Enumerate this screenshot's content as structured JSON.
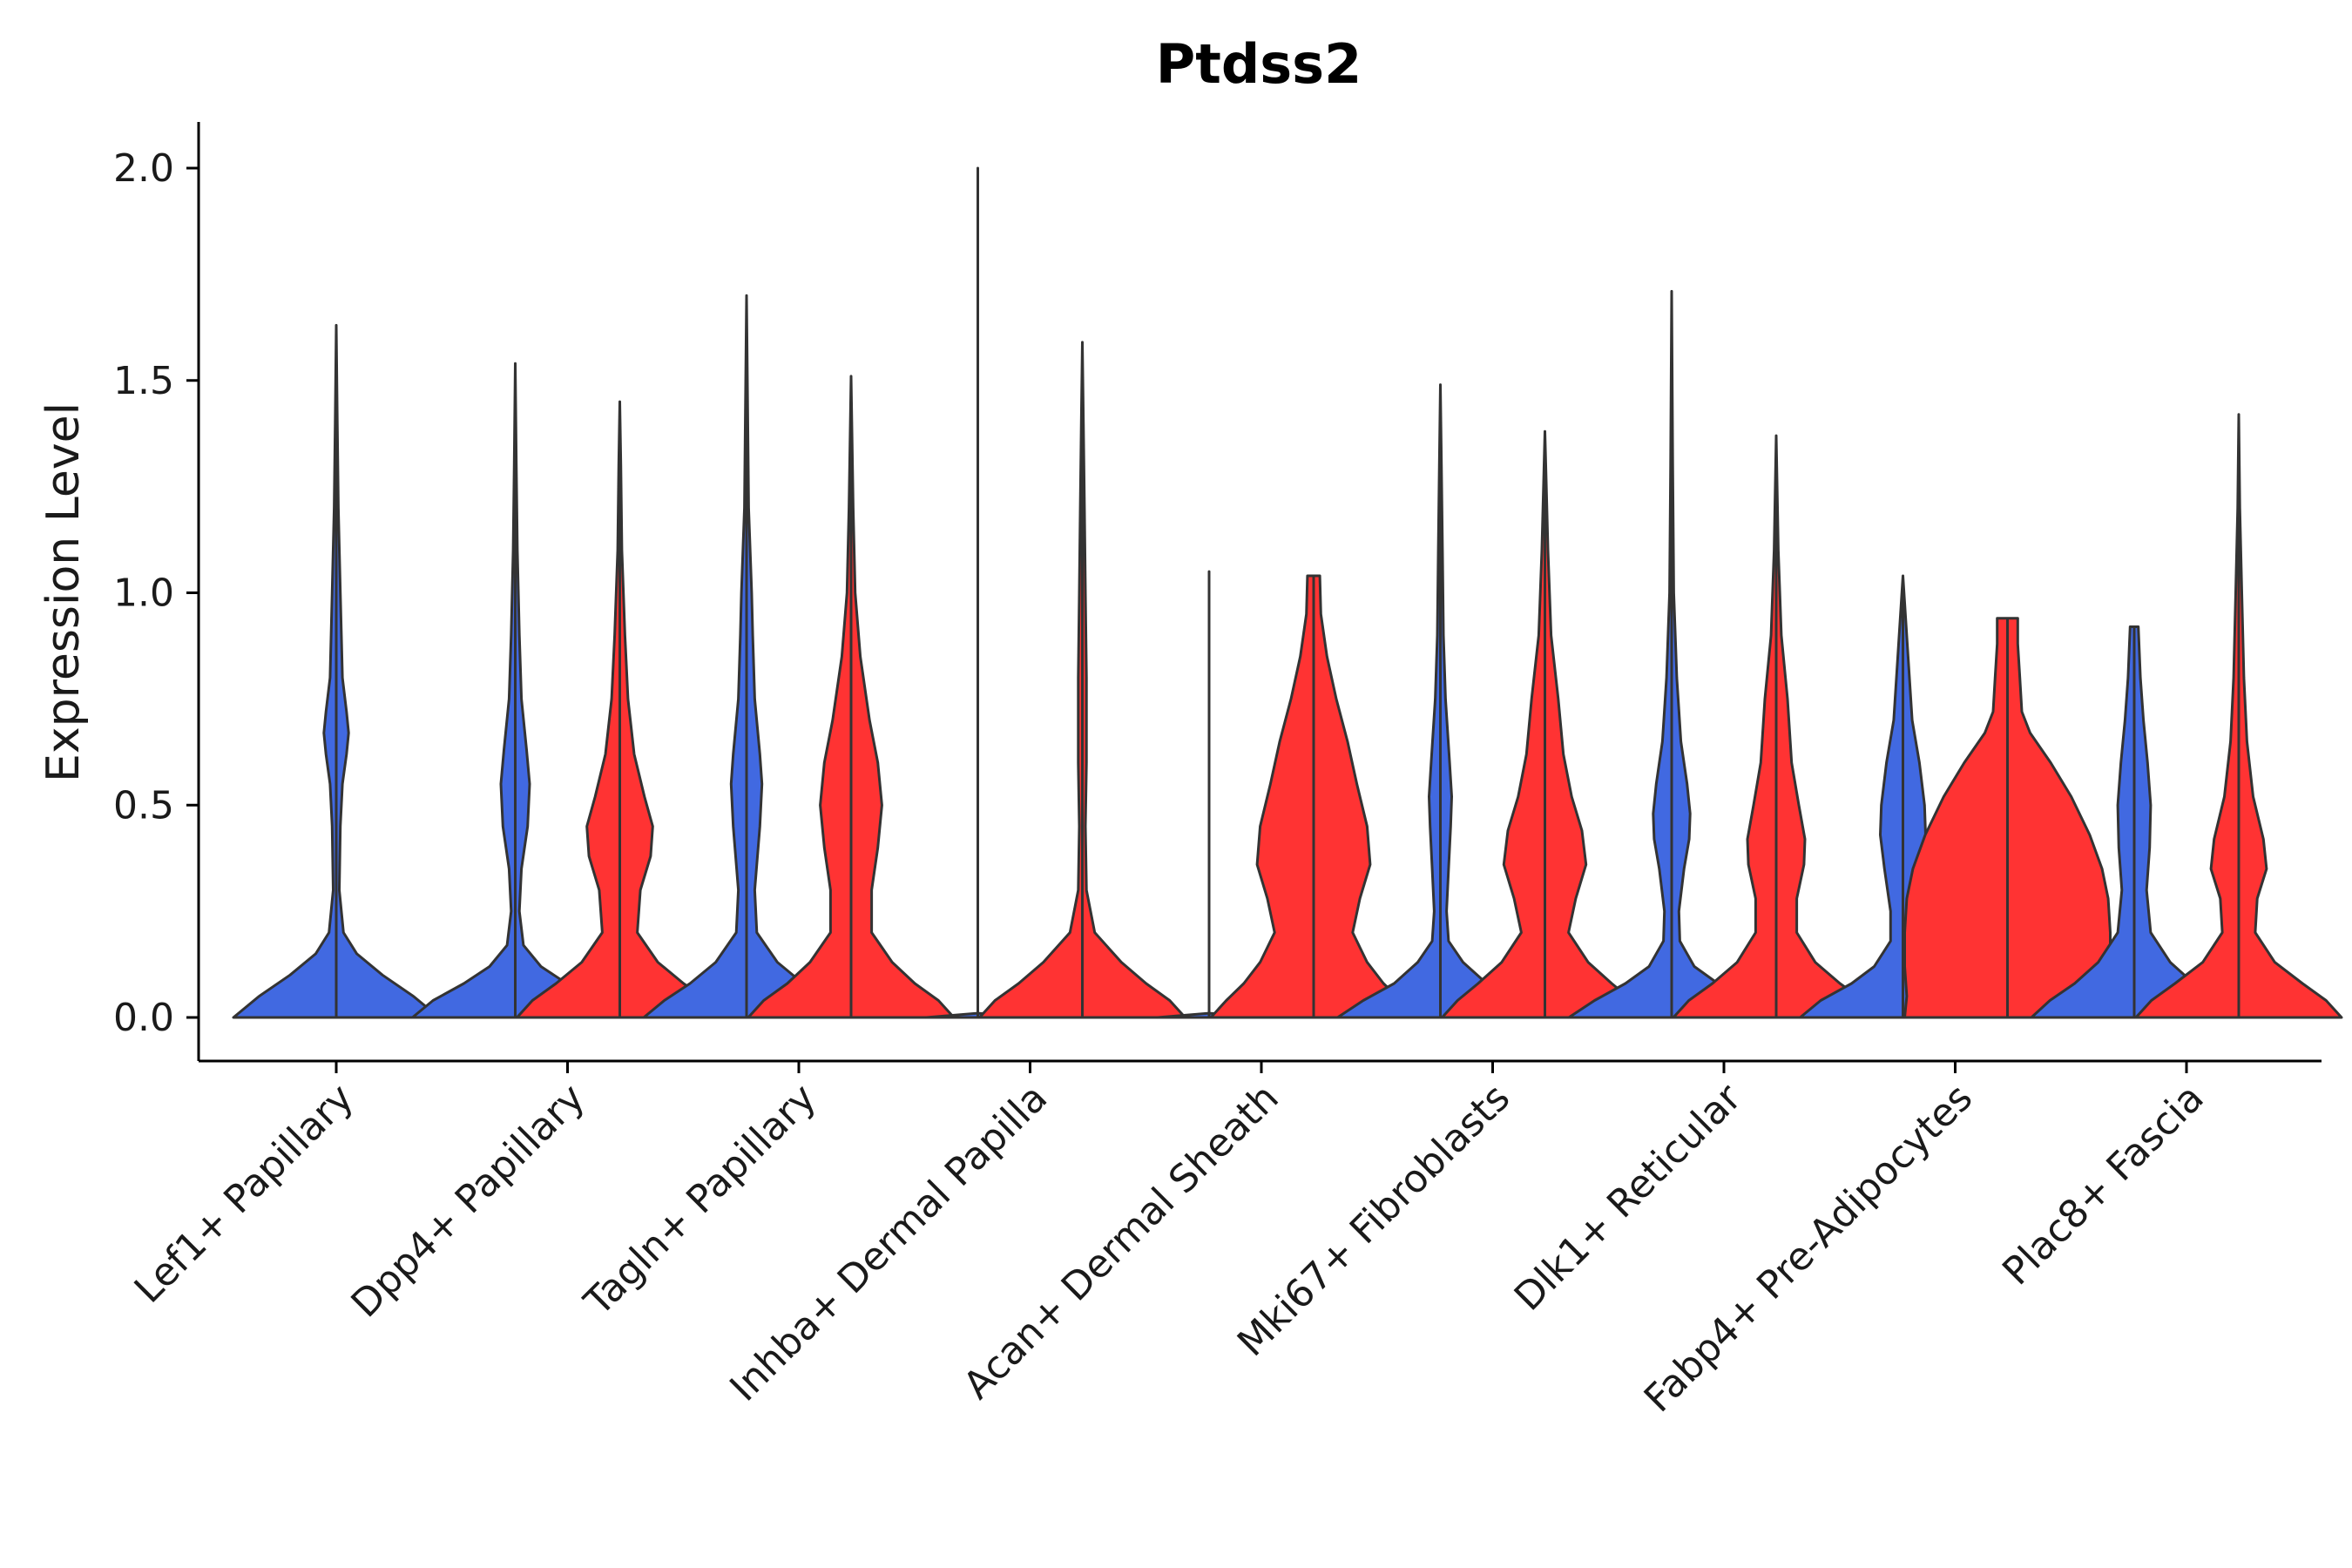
{
  "chart_data": {
    "type": "violin",
    "title": "Ptdss2",
    "xlabel": "",
    "ylabel": "Expression Level",
    "ylim": [
      -0.1,
      2.1
    ],
    "yticks": [
      0.0,
      0.5,
      1.0,
      1.5,
      2.0
    ],
    "ytick_labels": [
      "0.0",
      "0.5",
      "1.0",
      "1.5",
      "2.0"
    ],
    "categories": [
      "Lef1+ Papillary",
      "Dpp4+ Papillary",
      "Tagln+ Papillary",
      "Inhba+ Dermal Papilla",
      "Acan+ Dermal Sheath",
      "Mki67+ Fibroblasts",
      "Dlk1+ Reticular",
      "Fabp4+ Pre-Adipocytes",
      "Plac8+ Fascia"
    ],
    "colors": {
      "blue_group": "#4169E1",
      "red_group": "#FF3333",
      "outline": "#333333"
    },
    "series": [
      {
        "name": "blue",
        "color": "#4169E1",
        "values": [
          {
            "category": "Lef1+ Papillary",
            "max": 1.63,
            "profile": [
              [
                0,
                1.0
              ],
              [
                0.05,
                0.75
              ],
              [
                0.1,
                0.45
              ],
              [
                0.15,
                0.2
              ],
              [
                0.2,
                0.07
              ],
              [
                0.3,
                0.03
              ],
              [
                0.45,
                0.04
              ],
              [
                0.55,
                0.06
              ],
              [
                0.62,
                0.1
              ],
              [
                0.67,
                0.12
              ],
              [
                0.72,
                0.1
              ],
              [
                0.8,
                0.06
              ],
              [
                0.9,
                0.05
              ],
              [
                1.0,
                0.04
              ],
              [
                1.2,
                0.02
              ],
              [
                1.4,
                0.01
              ],
              [
                1.63,
                0.0
              ]
            ]
          },
          {
            "category": "Dpp4+ Papillary",
            "max": 1.54,
            "profile": [
              [
                0,
                1.0
              ],
              [
                0.04,
                0.8
              ],
              [
                0.08,
                0.5
              ],
              [
                0.12,
                0.25
              ],
              [
                0.17,
                0.08
              ],
              [
                0.25,
                0.04
              ],
              [
                0.35,
                0.06
              ],
              [
                0.45,
                0.12
              ],
              [
                0.55,
                0.14
              ],
              [
                0.63,
                0.11
              ],
              [
                0.75,
                0.06
              ],
              [
                0.9,
                0.04
              ],
              [
                1.1,
                0.02
              ],
              [
                1.3,
                0.01
              ],
              [
                1.54,
                0.0
              ]
            ]
          },
          {
            "category": "Tagln+ Papillary",
            "max": 1.7,
            "profile": [
              [
                0,
                1.0
              ],
              [
                0.04,
                0.8
              ],
              [
                0.08,
                0.55
              ],
              [
                0.13,
                0.3
              ],
              [
                0.2,
                0.1
              ],
              [
                0.3,
                0.08
              ],
              [
                0.45,
                0.13
              ],
              [
                0.55,
                0.15
              ],
              [
                0.62,
                0.13
              ],
              [
                0.75,
                0.08
              ],
              [
                0.9,
                0.06
              ],
              [
                1.0,
                0.05
              ],
              [
                1.2,
                0.02
              ],
              [
                1.45,
                0.01
              ],
              [
                1.7,
                0.0
              ]
            ]
          },
          {
            "category": "Inhba+ Dermal Papilla",
            "max": 2.0,
            "profile": [
              [
                0,
                0.5
              ],
              [
                0.01,
                0.0
              ],
              [
                2.0,
                0.0
              ]
            ]
          },
          {
            "category": "Acan+ Dermal Sheath",
            "max": 1.05,
            "profile": [
              [
                0,
                0.5
              ],
              [
                0.01,
                0.0
              ],
              [
                1.05,
                0.0
              ]
            ]
          },
          {
            "category": "Mki67+ Fibroblasts",
            "max": 1.49,
            "profile": [
              [
                0,
                1.0
              ],
              [
                0.04,
                0.75
              ],
              [
                0.08,
                0.45
              ],
              [
                0.13,
                0.22
              ],
              [
                0.18,
                0.08
              ],
              [
                0.25,
                0.06
              ],
              [
                0.35,
                0.08
              ],
              [
                0.45,
                0.1
              ],
              [
                0.52,
                0.11
              ],
              [
                0.6,
                0.09
              ],
              [
                0.75,
                0.05
              ],
              [
                0.9,
                0.03
              ],
              [
                1.1,
                0.02
              ],
              [
                1.3,
                0.01
              ],
              [
                1.49,
                0.0
              ]
            ]
          },
          {
            "category": "Dlk1+ Reticular",
            "max": 1.71,
            "profile": [
              [
                0,
                1.0
              ],
              [
                0.04,
                0.75
              ],
              [
                0.08,
                0.45
              ],
              [
                0.12,
                0.22
              ],
              [
                0.18,
                0.08
              ],
              [
                0.25,
                0.07
              ],
              [
                0.35,
                0.12
              ],
              [
                0.42,
                0.17
              ],
              [
                0.48,
                0.18
              ],
              [
                0.55,
                0.15
              ],
              [
                0.65,
                0.09
              ],
              [
                0.8,
                0.05
              ],
              [
                1.0,
                0.02
              ],
              [
                1.3,
                0.01
              ],
              [
                1.71,
                0.0
              ]
            ]
          },
          {
            "category": "Fabp4+ Pre-Adipocytes",
            "max": 1.04,
            "profile": [
              [
                0,
                1.0
              ],
              [
                0.04,
                0.8
              ],
              [
                0.08,
                0.5
              ],
              [
                0.12,
                0.28
              ],
              [
                0.18,
                0.12
              ],
              [
                0.25,
                0.12
              ],
              [
                0.35,
                0.18
              ],
              [
                0.43,
                0.22
              ],
              [
                0.5,
                0.21
              ],
              [
                0.6,
                0.16
              ],
              [
                0.7,
                0.09
              ],
              [
                0.85,
                0.05
              ],
              [
                1.04,
                0.0
              ]
            ]
          },
          {
            "category": "Plac8+ Fascia",
            "max": 0.92,
            "profile": [
              [
                0,
                1.0
              ],
              [
                0.04,
                0.82
              ],
              [
                0.08,
                0.58
              ],
              [
                0.13,
                0.35
              ],
              [
                0.2,
                0.16
              ],
              [
                0.3,
                0.12
              ],
              [
                0.4,
                0.15
              ],
              [
                0.5,
                0.16
              ],
              [
                0.6,
                0.13
              ],
              [
                0.7,
                0.09
              ],
              [
                0.8,
                0.06
              ],
              [
                0.92,
                0.04
              ]
            ]
          }
        ]
      },
      {
        "name": "red",
        "color": "#FF3333",
        "values": [
          {
            "category": "Lef1+ Papillary",
            "max": 0.0,
            "profile": []
          },
          {
            "category": "Dpp4+ Papillary",
            "max": 1.45,
            "profile": [
              [
                0,
                1.0
              ],
              [
                0.04,
                0.85
              ],
              [
                0.08,
                0.62
              ],
              [
                0.13,
                0.37
              ],
              [
                0.2,
                0.17
              ],
              [
                0.3,
                0.2
              ],
              [
                0.38,
                0.3
              ],
              [
                0.45,
                0.32
              ],
              [
                0.52,
                0.24
              ],
              [
                0.62,
                0.14
              ],
              [
                0.75,
                0.08
              ],
              [
                0.9,
                0.05
              ],
              [
                1.1,
                0.02
              ],
              [
                1.3,
                0.01
              ],
              [
                1.45,
                0.0
              ]
            ]
          },
          {
            "category": "Tagln+ Papillary",
            "max": 1.51,
            "profile": [
              [
                0,
                1.0
              ],
              [
                0.04,
                0.85
              ],
              [
                0.08,
                0.62
              ],
              [
                0.13,
                0.4
              ],
              [
                0.2,
                0.2
              ],
              [
                0.3,
                0.2
              ],
              [
                0.4,
                0.26
              ],
              [
                0.5,
                0.3
              ],
              [
                0.6,
                0.26
              ],
              [
                0.7,
                0.18
              ],
              [
                0.85,
                0.09
              ],
              [
                1.0,
                0.04
              ],
              [
                1.2,
                0.02
              ],
              [
                1.51,
                0.0
              ]
            ]
          },
          {
            "category": "Inhba+ Dermal Papilla",
            "max": 1.59,
            "profile": [
              [
                0,
                1.0
              ],
              [
                0.04,
                0.85
              ],
              [
                0.08,
                0.62
              ],
              [
                0.13,
                0.38
              ],
              [
                0.2,
                0.12
              ],
              [
                0.3,
                0.04
              ],
              [
                0.45,
                0.03
              ],
              [
                0.6,
                0.04
              ],
              [
                0.8,
                0.04
              ],
              [
                1.0,
                0.03
              ],
              [
                1.2,
                0.02
              ],
              [
                1.4,
                0.01
              ],
              [
                1.59,
                0.0
              ]
            ]
          },
          {
            "category": "Acan+ Dermal Sheath",
            "max": 1.04,
            "profile": [
              [
                0,
                1.0
              ],
              [
                0.04,
                0.85
              ],
              [
                0.08,
                0.68
              ],
              [
                0.13,
                0.52
              ],
              [
                0.2,
                0.38
              ],
              [
                0.28,
                0.45
              ],
              [
                0.36,
                0.55
              ],
              [
                0.45,
                0.52
              ],
              [
                0.55,
                0.42
              ],
              [
                0.65,
                0.33
              ],
              [
                0.75,
                0.22
              ],
              [
                0.85,
                0.13
              ],
              [
                0.95,
                0.07
              ],
              [
                1.04,
                0.06
              ]
            ]
          },
          {
            "category": "Mki67+ Fibroblasts",
            "max": 1.38,
            "profile": [
              [
                0,
                1.0
              ],
              [
                0.04,
                0.85
              ],
              [
                0.08,
                0.65
              ],
              [
                0.13,
                0.42
              ],
              [
                0.2,
                0.23
              ],
              [
                0.28,
                0.3
              ],
              [
                0.36,
                0.4
              ],
              [
                0.44,
                0.36
              ],
              [
                0.52,
                0.26
              ],
              [
                0.62,
                0.18
              ],
              [
                0.75,
                0.13
              ],
              [
                0.9,
                0.06
              ],
              [
                1.1,
                0.03
              ],
              [
                1.38,
                0.0
              ]
            ]
          },
          {
            "category": "Dlk1+ Reticular",
            "max": 1.37,
            "profile": [
              [
                0,
                1.0
              ],
              [
                0.04,
                0.85
              ],
              [
                0.08,
                0.62
              ],
              [
                0.13,
                0.38
              ],
              [
                0.2,
                0.2
              ],
              [
                0.28,
                0.2
              ],
              [
                0.36,
                0.27
              ],
              [
                0.42,
                0.28
              ],
              [
                0.5,
                0.22
              ],
              [
                0.6,
                0.15
              ],
              [
                0.75,
                0.11
              ],
              [
                0.9,
                0.05
              ],
              [
                1.1,
                0.02
              ],
              [
                1.37,
                0.0
              ]
            ]
          },
          {
            "category": "Fabp4+ Pre-Adipocytes",
            "max": 0.94,
            "profile": [
              [
                0,
                1.0
              ],
              [
                0.05,
                0.98
              ],
              [
                0.12,
                1.0
              ],
              [
                0.2,
                1.0
              ],
              [
                0.28,
                0.98
              ],
              [
                0.35,
                0.92
              ],
              [
                0.43,
                0.8
              ],
              [
                0.52,
                0.62
              ],
              [
                0.6,
                0.42
              ],
              [
                0.67,
                0.22
              ],
              [
                0.72,
                0.14
              ],
              [
                0.8,
                0.12
              ],
              [
                0.88,
                0.1
              ],
              [
                0.94,
                0.1
              ]
            ]
          },
          {
            "category": "Plac8+ Fascia",
            "max": 1.42,
            "profile": [
              [
                0,
                1.0
              ],
              [
                0.04,
                0.85
              ],
              [
                0.08,
                0.62
              ],
              [
                0.13,
                0.35
              ],
              [
                0.2,
                0.16
              ],
              [
                0.28,
                0.18
              ],
              [
                0.35,
                0.27
              ],
              [
                0.42,
                0.24
              ],
              [
                0.52,
                0.14
              ],
              [
                0.65,
                0.08
              ],
              [
                0.8,
                0.05
              ],
              [
                1.0,
                0.03
              ],
              [
                1.2,
                0.01
              ],
              [
                1.42,
                0.0
              ]
            ]
          }
        ]
      }
    ]
  }
}
